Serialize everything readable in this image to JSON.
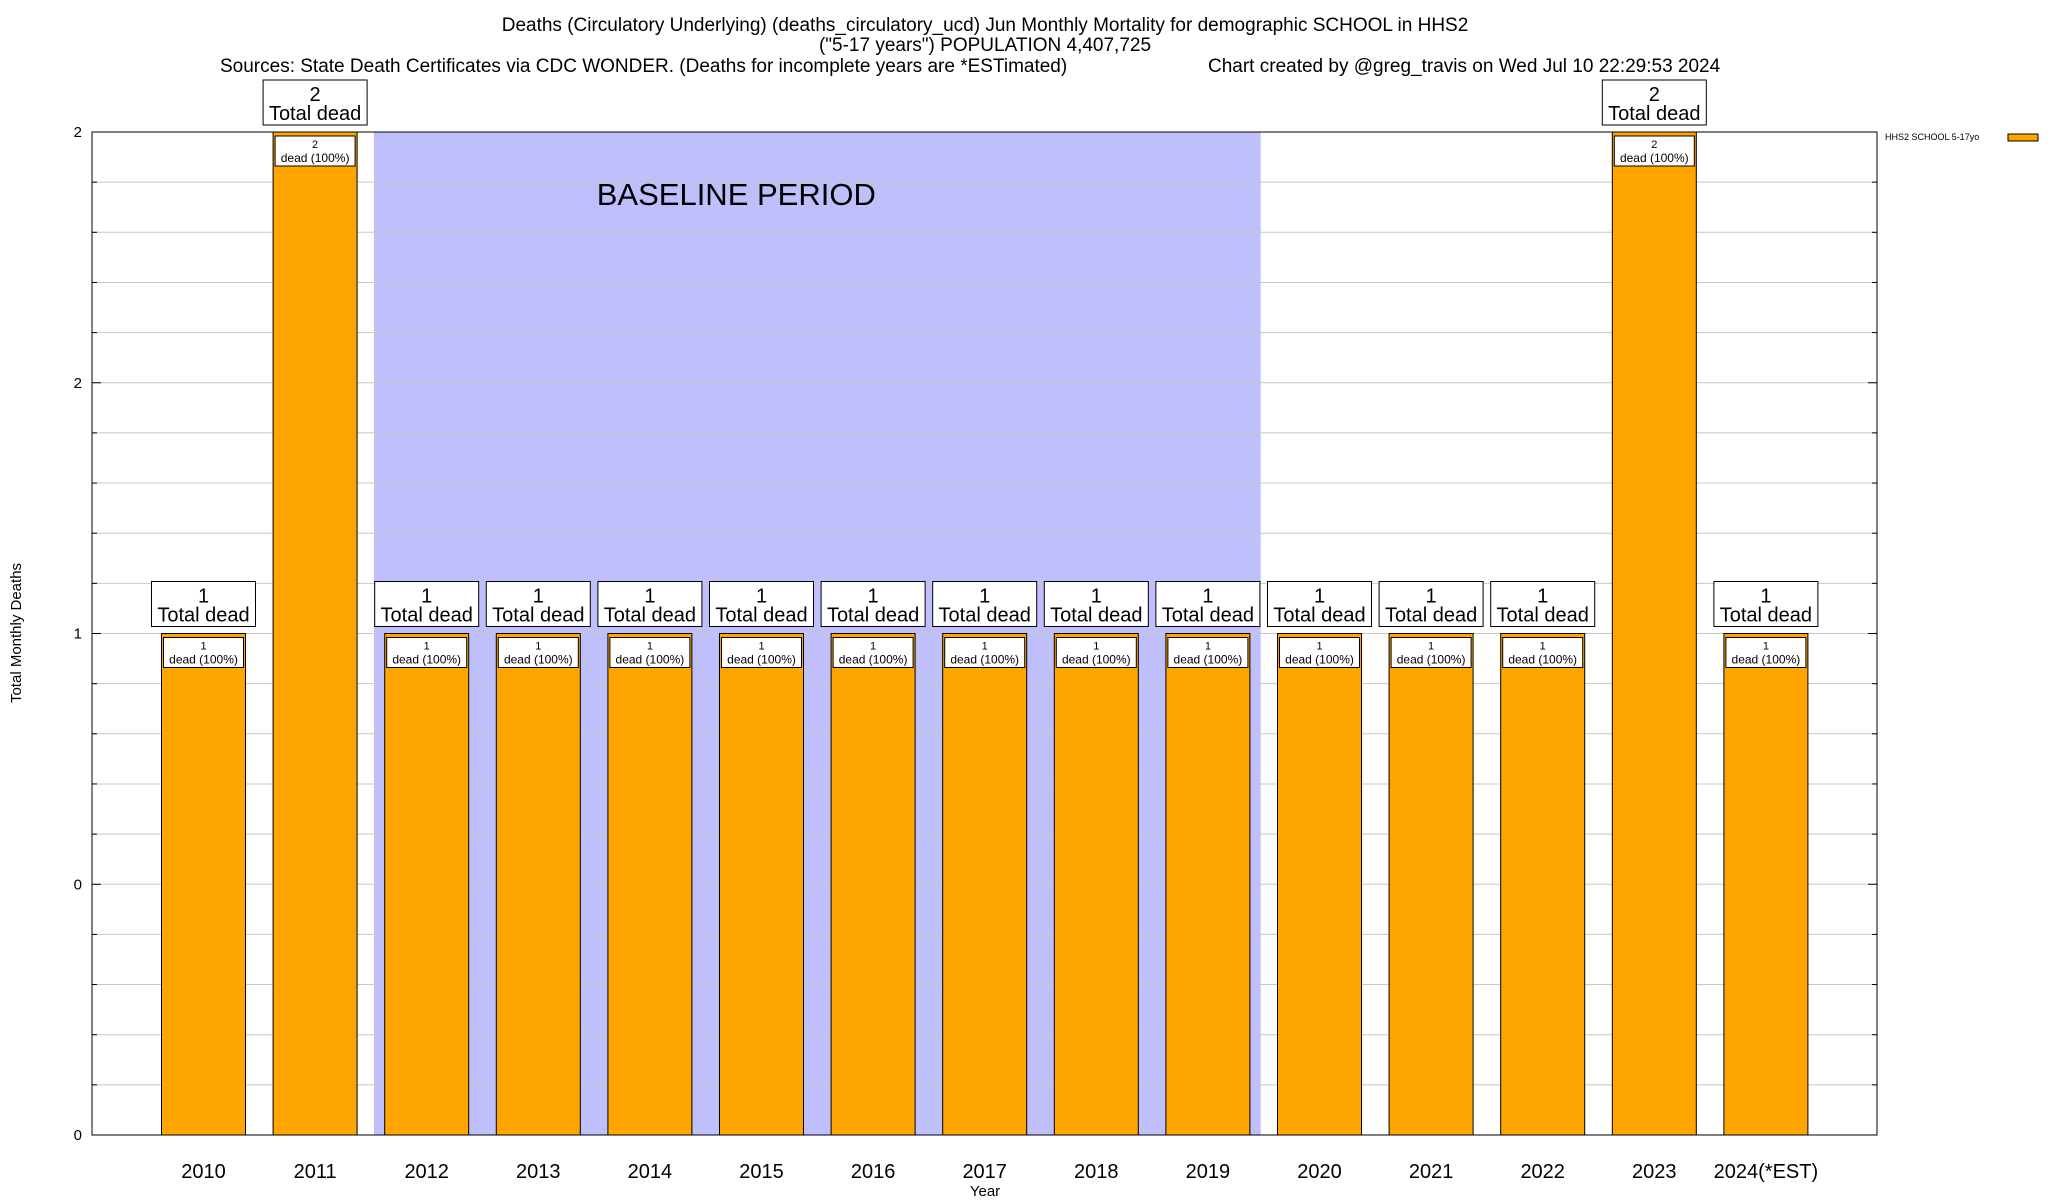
{
  "header": {
    "title_line1": "Deaths (Circulatory Underlying) (deaths_circulatory_ucd) Jun Monthly Mortality for demographic SCHOOL in HHS2",
    "title_line2": "(\"5-17 years\") POPULATION 4,407,725",
    "sources": "Sources: State Death Certificates via CDC WONDER. (Deaths for incomplete years are *ESTimated)",
    "credit": "Chart created by @greg_travis on Wed Jul 10 22:29:53 2024"
  },
  "chart_data": {
    "type": "bar",
    "xlabel": "Year",
    "ylabel": "Total Monthly Deaths",
    "ylim": [
      0,
      2
    ],
    "y_tick_labels": [
      "0",
      "0",
      "1",
      "2",
      "2"
    ],
    "y_tick_values": [
      0,
      0.5,
      1,
      1.5,
      2
    ],
    "grid": true,
    "legend_position": "top-right",
    "colors": {
      "bar": "#ffa500",
      "baseline": "#bfbffc",
      "grid": "#c8c8c8"
    },
    "baseline": {
      "label": "BASELINE PERIOD",
      "from": "2012",
      "to": "2019"
    },
    "categories": [
      "2010",
      "2011",
      "2012",
      "2013",
      "2014",
      "2015",
      "2016",
      "2017",
      "2018",
      "2019",
      "2020",
      "2021",
      "2022",
      "2023",
      "2024(*EST)"
    ],
    "series": [
      {
        "name": "HHS2 SCHOOL 5-17yo",
        "values": [
          1,
          2,
          1,
          1,
          1,
          1,
          1,
          1,
          1,
          1,
          1,
          1,
          1,
          2,
          1
        ]
      }
    ],
    "total_label_suffix": "Total dead",
    "segment_label_suffix": "dead (100%)"
  }
}
